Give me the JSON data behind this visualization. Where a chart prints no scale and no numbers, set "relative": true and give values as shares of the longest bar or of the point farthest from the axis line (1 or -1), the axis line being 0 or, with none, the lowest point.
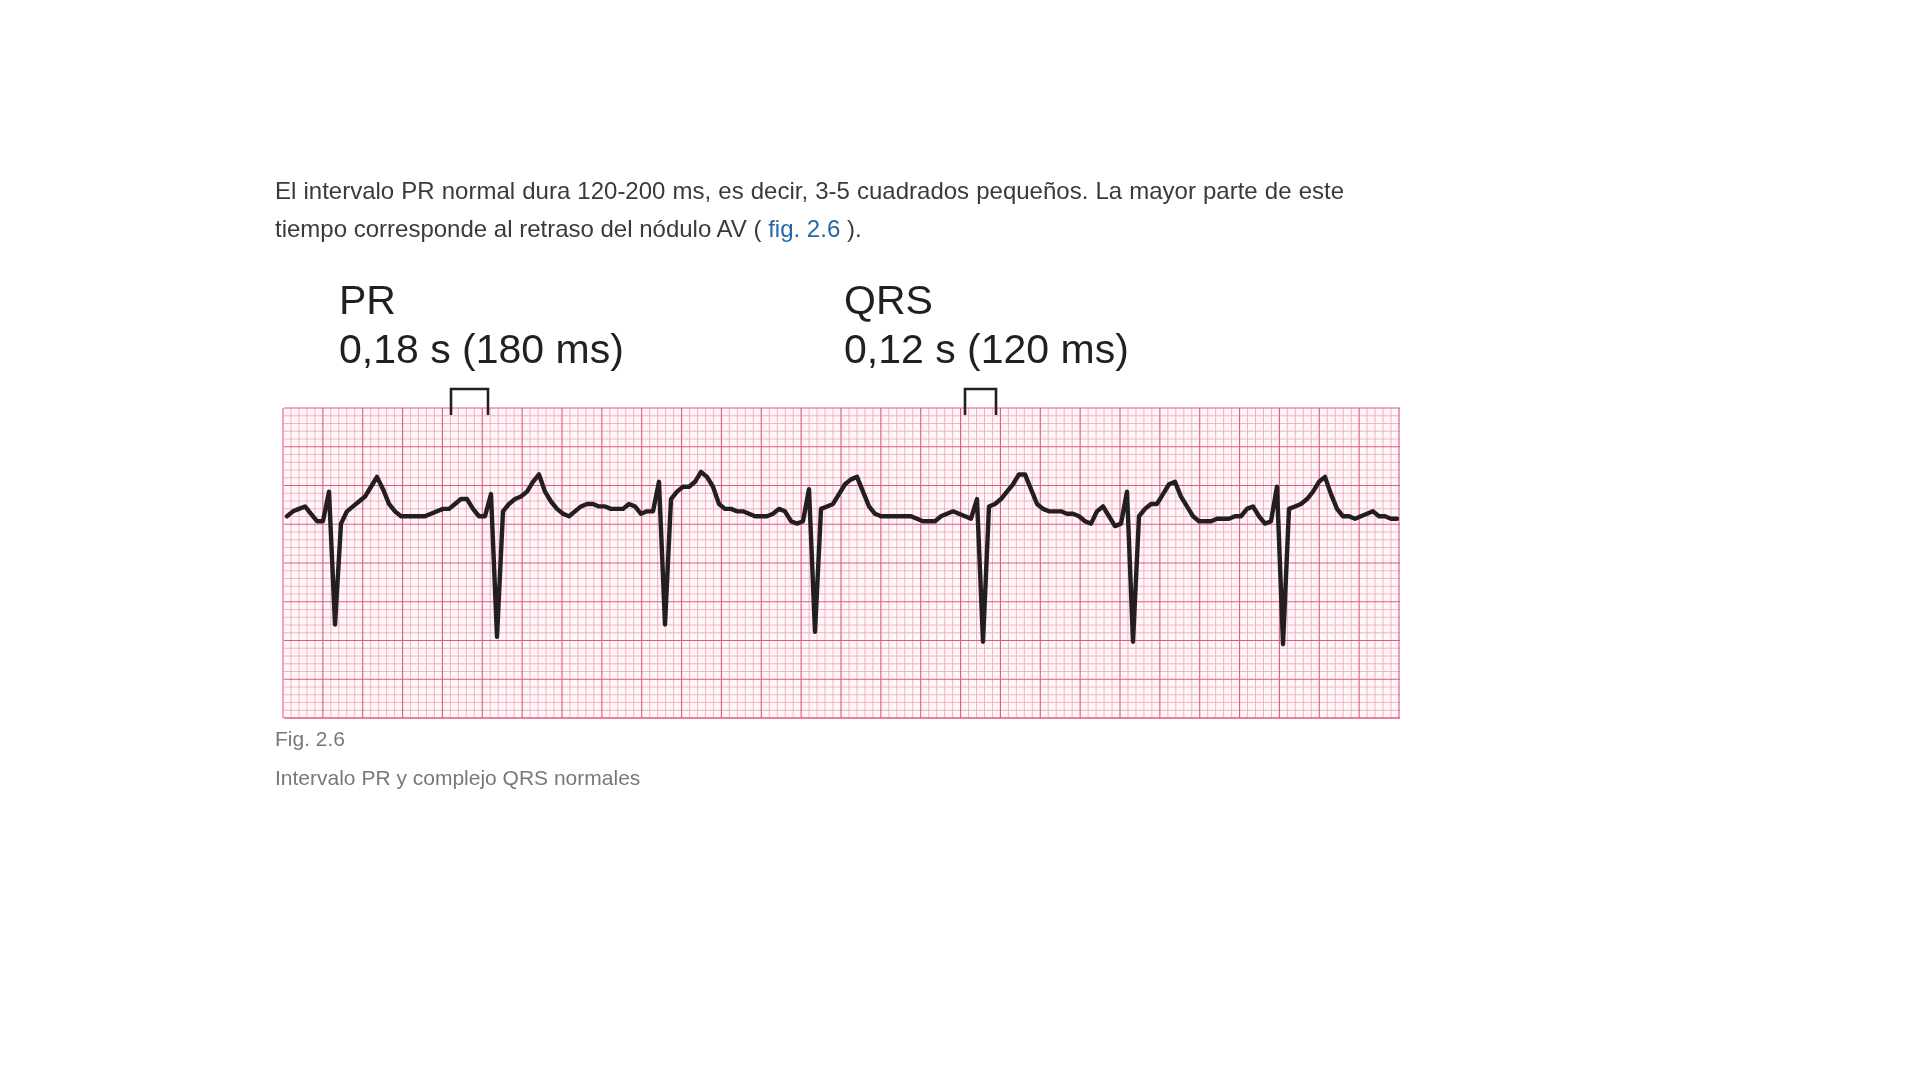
{
  "chart_data": {
    "type": "line",
    "title": "Intervalo PR y complejo QRS normales",
    "annotations": [
      "El intervalo PR normal dura 120-200 ms, es decir, 3-5 cuadrados pequeños. La mayor parte de este",
      "tiempo corresponde al retraso del nódulo AV (",
      "fig. 2.6",
      ").",
      "PR",
      "0,18 s (180 ms)",
      "QRS",
      "0,12 s (120 ms)",
      "Fig. 2.6"
    ],
    "categories": [
      null,
      null,
      null,
      null,
      null,
      null,
      null,
      null,
      null,
      null,
      null,
      null,
      null,
      null,
      null,
      null,
      null,
      null,
      null,
      null,
      null,
      null,
      null,
      null,
      null,
      null,
      null,
      null,
      null,
      null,
      null,
      null,
      null,
      null,
      null,
      null,
      null,
      null,
      null,
      null,
      null,
      null,
      null,
      null,
      null,
      null,
      null,
      null,
      null,
      null,
      null,
      null,
      null,
      null,
      null,
      null,
      null,
      null,
      null,
      null,
      null,
      null,
      null,
      null,
      null,
      null,
      null,
      null,
      null,
      null,
      null,
      null,
      null,
      null,
      null,
      null,
      null,
      null,
      null,
      null,
      null,
      null,
      null,
      null,
      null,
      null,
      null,
      null,
      null,
      null,
      null,
      null,
      null,
      null,
      null,
      null,
      null,
      null,
      null,
      null,
      null,
      null,
      null,
      null,
      null,
      null,
      null,
      null,
      null,
      null,
      null,
      null,
      null,
      null,
      null,
      null,
      null,
      null,
      null,
      null,
      null,
      null,
      null,
      null,
      null,
      null,
      null,
      null,
      null,
      null,
      null,
      null,
      null,
      null,
      null,
      null,
      null,
      null,
      null,
      null,
      null,
      null,
      null,
      null,
      null,
      null,
      null,
      null,
      null,
      null,
      null,
      null,
      null,
      null,
      null,
      null,
      null,
      null,
      null,
      null,
      null,
      null,
      null,
      null,
      null,
      null,
      null,
      null,
      null,
      null,
      null,
      null,
      null,
      null,
      null,
      null,
      null,
      null,
      null,
      null,
      null,
      null,
      null,
      null,
      null,
      null
    ],
    "values": [
      0.82,
      0.84,
      0.85,
      0.86,
      0.83,
      0.8,
      0.8,
      0.92,
      0.38,
      0.79,
      0.84,
      0.86,
      0.88,
      0.9,
      0.94,
      0.98,
      0.93,
      0.87,
      0.84,
      0.82,
      0.82,
      0.82,
      0.82,
      0.82,
      0.83,
      0.84,
      0.85,
      0.85,
      0.87,
      0.89,
      0.89,
      0.85,
      0.82,
      0.82,
      0.91,
      0.33,
      0.84,
      0.87,
      0.89,
      0.9,
      0.92,
      0.96,
      0.99,
      0.92,
      0.88,
      0.85,
      0.83,
      0.82,
      0.84,
      0.86,
      0.87,
      0.87,
      0.86,
      0.86,
      0.85,
      0.85,
      0.85,
      0.87,
      0.86,
      0.83,
      0.84,
      0.84,
      0.96,
      0.38,
      0.89,
      0.92,
      0.94,
      0.94,
      0.96,
      1.0,
      0.98,
      0.94,
      0.87,
      0.85,
      0.85,
      0.84,
      0.84,
      0.83,
      0.82,
      0.82,
      0.82,
      0.83,
      0.85,
      0.84,
      0.8,
      0.79,
      0.8,
      0.93,
      0.35,
      0.85,
      0.86,
      0.87,
      0.91,
      0.95,
      0.97,
      0.98,
      0.92,
      0.86,
      0.83,
      0.82,
      0.82,
      0.82,
      0.82,
      0.82,
      0.82,
      0.81,
      0.8,
      0.8,
      0.8,
      0.82,
      0.83,
      0.84,
      0.83,
      0.82,
      0.81,
      0.89,
      0.31,
      0.86,
      0.87,
      0.89,
      0.92,
      0.95,
      0.99,
      0.99,
      0.93,
      0.87,
      0.85,
      0.84,
      0.84,
      0.84,
      0.83,
      0.83,
      0.82,
      0.8,
      0.79,
      0.84,
      0.86,
      0.82,
      0.78,
      0.79,
      0.92,
      0.31,
      0.82,
      0.85,
      0.87,
      0.87,
      0.91,
      0.95,
      0.96,
      0.9,
      0.86,
      0.82,
      0.8,
      0.8,
      0.8,
      0.81,
      0.81,
      0.81,
      0.82,
      0.82,
      0.85,
      0.86,
      0.82,
      0.79,
      0.8,
      0.94,
      0.3,
      0.85,
      0.86,
      0.87,
      0.89,
      0.92,
      0.96,
      0.98,
      0.91,
      0.85,
      0.82,
      0.82,
      0.81,
      0.82,
      0.83,
      0.84,
      0.82,
      0.82,
      0.81,
      0.81
    ],
    "color": "#231f20",
    "relative": true,
    "grid": true,
    "marker": "none",
    "line_style": "solid"
  }
}
